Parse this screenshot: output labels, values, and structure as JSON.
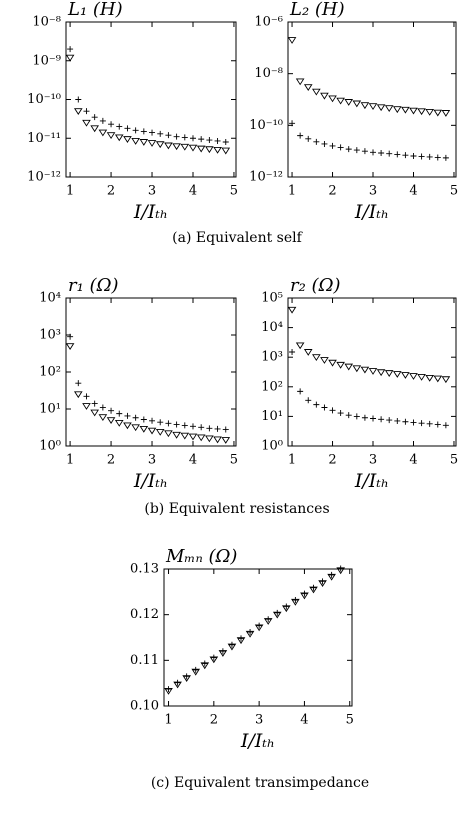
{
  "chart_data": [
    {
      "type": "scatter",
      "title": "L₁ (H)",
      "x_label": "I/Iₜₕ",
      "log_y": true,
      "x": [
        1,
        1.2,
        1.4,
        1.6,
        1.8,
        2,
        2.2,
        2.4,
        2.6,
        2.8,
        3,
        3.2,
        3.4,
        3.6,
        3.8,
        4,
        4.2,
        4.4,
        4.6,
        4.8
      ],
      "series": [
        {
          "marker": "plus",
          "color": "#000000",
          "values": [
            2e-09,
            1e-10,
            5e-11,
            3.5e-11,
            2.8e-11,
            2.3e-11,
            2e-11,
            1.8e-11,
            1.6e-11,
            1.5e-11,
            1.4e-11,
            1.3e-11,
            1.2e-11,
            1.1e-11,
            1.05e-11,
            1e-11,
            9.5e-12,
            9e-12,
            8.5e-12,
            8e-12
          ]
        },
        {
          "marker": "triangle-down",
          "color": "#000000",
          "values": [
            1.2e-09,
            5e-11,
            2.5e-11,
            1.8e-11,
            1.4e-11,
            1.2e-11,
            1.05e-11,
            9.5e-12,
            8.5e-12,
            8e-12,
            7.5e-12,
            7e-12,
            6.5e-12,
            6.2e-12,
            6e-12,
            5.7e-12,
            5.4e-12,
            5.2e-12,
            5e-12,
            4.8e-12
          ]
        }
      ],
      "xlim": [
        0.9,
        5.05
      ],
      "xticks": [
        1,
        2,
        3,
        4,
        5
      ],
      "ylim": [
        1e-12,
        1e-08
      ],
      "yticks": [
        {
          "value": 1e-12,
          "label": "10⁻¹²"
        },
        {
          "value": 1e-11,
          "label": "10⁻¹¹"
        },
        {
          "value": 1e-10,
          "label": "10⁻¹⁰"
        },
        {
          "value": 1e-09,
          "label": "10⁻⁹"
        },
        {
          "value": 1e-08,
          "label": "10⁻⁸"
        }
      ]
    },
    {
      "type": "scatter",
      "title": "L₂ (H)",
      "x_label": "I/Iₜₕ",
      "log_y": true,
      "x": [
        1,
        1.2,
        1.4,
        1.6,
        1.8,
        2,
        2.2,
        2.4,
        2.6,
        2.8,
        3,
        3.2,
        3.4,
        3.6,
        3.8,
        4,
        4.2,
        4.4,
        4.6,
        4.8
      ],
      "series": [
        {
          "marker": "plus",
          "color": "#000000",
          "values": [
            1.2e-10,
            4e-11,
            3e-11,
            2.3e-11,
            1.9e-11,
            1.6e-11,
            1.4e-11,
            1.2e-11,
            1.1e-11,
            1e-11,
            9e-12,
            8.5e-12,
            8e-12,
            7.5e-12,
            7e-12,
            6.5e-12,
            6.2e-12,
            6e-12,
            5.7e-12,
            5.5e-12
          ]
        },
        {
          "marker": "triangle-down",
          "color": "#000000",
          "values": [
            2e-07,
            5e-09,
            3e-09,
            2e-09,
            1.4e-09,
            1.1e-09,
            9e-10,
            8e-10,
            7e-10,
            6e-10,
            5.5e-10,
            5e-10,
            4.6e-10,
            4.2e-10,
            4e-10,
            3.7e-10,
            3.5e-10,
            3.3e-10,
            3.1e-10,
            3e-10
          ]
        }
      ],
      "xlim": [
        0.9,
        5.05
      ],
      "xticks": [
        1,
        2,
        3,
        4,
        5
      ],
      "ylim": [
        1e-12,
        1e-06
      ],
      "yticks": [
        {
          "value": 1e-12,
          "label": "10⁻¹²"
        },
        {
          "value": 1e-10,
          "label": "10⁻¹⁰"
        },
        {
          "value": 1e-08,
          "label": "10⁻⁸"
        },
        {
          "value": 1e-06,
          "label": "10⁻⁶"
        }
      ]
    },
    {
      "type": "scatter",
      "title": "r₁ (Ω)",
      "x_label": "I/Iₜₕ",
      "log_y": true,
      "x": [
        1,
        1.2,
        1.4,
        1.6,
        1.8,
        2,
        2.2,
        2.4,
        2.6,
        2.8,
        3,
        3.2,
        3.4,
        3.6,
        3.8,
        4,
        4.2,
        4.4,
        4.6,
        4.8
      ],
      "series": [
        {
          "marker": "plus",
          "color": "#000000",
          "values": [
            900,
            50,
            22,
            14,
            11,
            9,
            7.5,
            6.5,
            5.8,
            5.2,
            4.8,
            4.4,
            4.1,
            3.8,
            3.6,
            3.4,
            3.2,
            3,
            2.9,
            2.8
          ]
        },
        {
          "marker": "triangle-down",
          "color": "#000000",
          "values": [
            500,
            25,
            12,
            8,
            6,
            5,
            4.2,
            3.6,
            3.2,
            2.9,
            2.6,
            2.4,
            2.2,
            2,
            1.9,
            1.8,
            1.7,
            1.6,
            1.5,
            1.45
          ]
        }
      ],
      "xlim": [
        0.9,
        5.05
      ],
      "xticks": [
        1,
        2,
        3,
        4,
        5
      ],
      "ylim": [
        1,
        10000
      ],
      "yticks": [
        {
          "value": 1,
          "label": "10⁰"
        },
        {
          "value": 10,
          "label": "10¹"
        },
        {
          "value": 100,
          "label": "10²"
        },
        {
          "value": 1000,
          "label": "10³"
        },
        {
          "value": 10000,
          "label": "10⁴"
        }
      ]
    },
    {
      "type": "scatter",
      "title": "r₂ (Ω)",
      "x_label": "I/Iₜₕ",
      "log_y": true,
      "x": [
        1,
        1.2,
        1.4,
        1.6,
        1.8,
        2,
        2.2,
        2.4,
        2.6,
        2.8,
        3,
        3.2,
        3.4,
        3.6,
        3.8,
        4,
        4.2,
        4.4,
        4.6,
        4.8
      ],
      "series": [
        {
          "marker": "plus",
          "color": "#000000",
          "values": [
            1500,
            70,
            35,
            25,
            20,
            16,
            13,
            11,
            10,
            9,
            8.5,
            8,
            7.5,
            7,
            6.6,
            6.2,
            5.9,
            5.6,
            5.3,
            5
          ]
        },
        {
          "marker": "triangle-down",
          "color": "#000000",
          "values": [
            40000,
            2500,
            1500,
            1000,
            800,
            650,
            550,
            480,
            420,
            380,
            340,
            310,
            290,
            270,
            250,
            230,
            215,
            200,
            190,
            180
          ]
        }
      ],
      "xlim": [
        0.9,
        5.05
      ],
      "xticks": [
        1,
        2,
        3,
        4,
        5
      ],
      "ylim": [
        1,
        100000
      ],
      "yticks": [
        {
          "value": 1,
          "label": "10⁰"
        },
        {
          "value": 10,
          "label": "10¹"
        },
        {
          "value": 100,
          "label": "10²"
        },
        {
          "value": 1000,
          "label": "10³"
        },
        {
          "value": 10000,
          "label": "10⁴"
        },
        {
          "value": 100000,
          "label": "10⁵"
        }
      ]
    },
    {
      "type": "scatter",
      "title": "Mₘₙ (Ω)",
      "x_label": "I/Iₜₕ",
      "log_y": false,
      "x": [
        1,
        1.2,
        1.4,
        1.6,
        1.8,
        2,
        2.2,
        2.4,
        2.6,
        2.8,
        3,
        3.2,
        3.4,
        3.6,
        3.8,
        4,
        4.2,
        4.4,
        4.6,
        4.8
      ],
      "series": [
        {
          "marker": "plus",
          "color": "#000000",
          "values": [
            0.1037,
            0.1051,
            0.1065,
            0.1079,
            0.1093,
            0.1106,
            0.112,
            0.1134,
            0.1148,
            0.1162,
            0.1176,
            0.119,
            0.1204,
            0.1218,
            0.1232,
            0.1246,
            0.1259,
            0.1273,
            0.1287,
            0.1301
          ]
        },
        {
          "marker": "triangle-down",
          "color": "#000000",
          "values": [
            0.1033,
            0.1047,
            0.1061,
            0.1075,
            0.1089,
            0.1102,
            0.1116,
            0.113,
            0.1144,
            0.1158,
            0.1172,
            0.1186,
            0.12,
            0.1214,
            0.1228,
            0.1242,
            0.1255,
            0.1269,
            0.1283,
            0.1297
          ]
        }
      ],
      "xlim": [
        0.9,
        5.05
      ],
      "xticks": [
        1,
        2,
        3,
        4,
        5
      ],
      "ylim": [
        0.1,
        0.13
      ],
      "yticks": [
        {
          "value": 0.1,
          "label": "0.10"
        },
        0.11,
        0.12,
        0.13
      ]
    }
  ],
  "captions": [
    "(a) Equivalent self",
    "(b) Equivalent resistances",
    "(c) Equivalent transimpedance"
  ]
}
